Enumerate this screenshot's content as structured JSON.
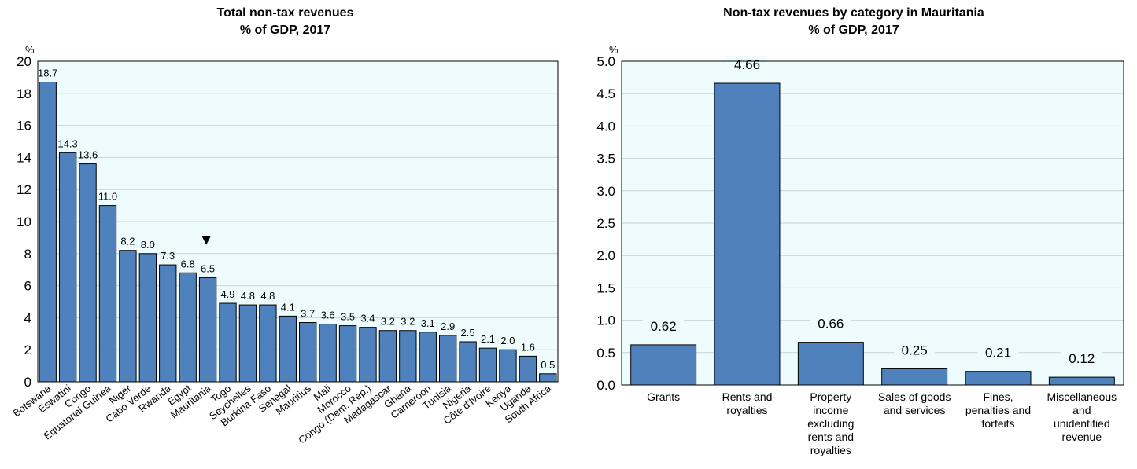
{
  "colors": {
    "bar": "#4f81bd",
    "bar_stroke": "#000000",
    "plot_bg": "#eefcfe",
    "grid": "#c8d4d8"
  },
  "chart_data": [
    {
      "type": "bar",
      "title": "Total non-tax revenues",
      "subtitle": "% of GDP, 2017",
      "ylabel": "%",
      "ylim": [
        0,
        20
      ],
      "yticks": [
        "0",
        "2",
        "4",
        "6",
        "8",
        "10",
        "12",
        "14",
        "16",
        "18",
        "20"
      ],
      "grid": true,
      "highlight_marker": "▼",
      "highlight_category": "Mauritania",
      "categories": [
        "Botswana",
        "Eswatini",
        "Congo",
        "Equatorial Guinea",
        "Niger",
        "Cabo Verde",
        "Rwanda",
        "Egypt",
        "Mauritania",
        "Togo",
        "Seychelles",
        "Burkina Faso",
        "Senegal",
        "Mauritius",
        "Mali",
        "Morocco",
        "Congo (Dem. Rep.)",
        "Madagascar",
        "Ghana",
        "Cameroon",
        "Tunisia",
        "Nigeria",
        "Côte d'Ivoire",
        "Kenya",
        "Uganda",
        "South Africa"
      ],
      "values": [
        18.7,
        14.3,
        13.6,
        11.0,
        8.2,
        8.0,
        7.3,
        6.8,
        6.5,
        4.9,
        4.8,
        4.8,
        4.1,
        3.7,
        3.6,
        3.5,
        3.4,
        3.2,
        3.2,
        3.1,
        2.9,
        2.5,
        2.1,
        2.0,
        1.6,
        0.5
      ],
      "labels": [
        "18.7",
        "14.3",
        "13.6",
        "11.0",
        "8.2",
        "8.0",
        "7.3",
        "6.8",
        "6.5",
        "4.9",
        "4.8",
        "4.8",
        "4.1",
        "3.7",
        "3.6",
        "3.5",
        "3.4",
        "3.2",
        "3.2",
        "3.1",
        "2.9",
        "2.5",
        "2.1",
        "2.0",
        "1.6",
        "0.5"
      ]
    },
    {
      "type": "bar",
      "title": "Non-tax revenues by category in Mauritania",
      "subtitle": "% of GDP, 2017",
      "ylabel": "%",
      "ylim": [
        0,
        5.0
      ],
      "yticks": [
        "0.0",
        "0.5",
        "1.0",
        "1.5",
        "2.0",
        "2.5",
        "3.0",
        "3.5",
        "4.0",
        "4.5",
        "5.0"
      ],
      "grid": true,
      "categories": [
        [
          "Grants"
        ],
        [
          "Rents and",
          "royalties"
        ],
        [
          "Property",
          "income",
          "excluding",
          "rents and",
          "royalties"
        ],
        [
          "Sales of goods",
          "and services"
        ],
        [
          "Fines,",
          "penalties and",
          "forfeits"
        ],
        [
          "Miscellaneous",
          "and",
          "unidentified",
          "revenue"
        ]
      ],
      "values": [
        0.62,
        4.66,
        0.66,
        0.25,
        0.21,
        0.12
      ],
      "labels": [
        "0.62",
        "4.66",
        "0.66",
        "0.25",
        "0.21",
        "0.12"
      ]
    }
  ]
}
